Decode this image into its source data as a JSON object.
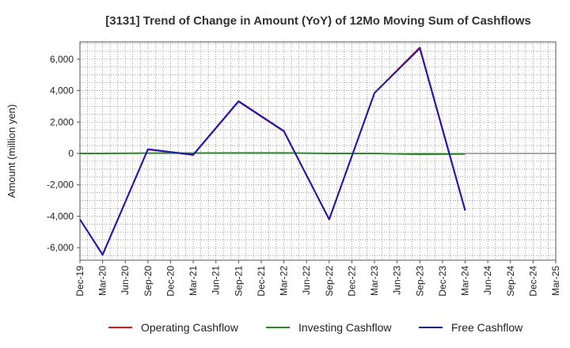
{
  "chart_data": {
    "type": "line",
    "title": "[3131]  Trend of Change in Amount (YoY) of 12Mo Moving Sum of Cashflows",
    "xlabel": "",
    "ylabel": "Amount (million yen)",
    "ylim": [
      -6800,
      7100
    ],
    "yticks": [
      -6000,
      -4000,
      -2000,
      0,
      2000,
      4000,
      6000
    ],
    "ytick_labels": [
      "-6,000",
      "-4,000",
      "-2,000",
      "0",
      "2,000",
      "4,000",
      "6,000"
    ],
    "x": [
      "Dec-19",
      "Mar-20",
      "Jun-20",
      "Sep-20",
      "Dec-20",
      "Mar-21",
      "Jun-21",
      "Sep-21",
      "Dec-21",
      "Mar-22",
      "Jun-22",
      "Sep-22",
      "Dec-22",
      "Mar-23",
      "Jun-23",
      "Sep-23",
      "Dec-23",
      "Mar-24",
      "Jun-24",
      "Sep-24",
      "Dec-24",
      "Mar-25"
    ],
    "grid": true,
    "legend_position": "bottom",
    "series": [
      {
        "name": "Operating Cashflow",
        "color": "#e8141b",
        "values": [
          -4200,
          -6450,
          null,
          250,
          null,
          -100,
          null,
          3300,
          null,
          1400,
          null,
          -4200,
          null,
          3850,
          null,
          6750,
          null,
          -3600,
          null,
          null,
          null,
          null
        ]
      },
      {
        "name": "Investing Cashflow",
        "color": "#2a8a2a",
        "values": [
          0,
          0,
          null,
          20,
          null,
          20,
          null,
          30,
          null,
          30,
          null,
          0,
          null,
          0,
          null,
          -60,
          null,
          -40,
          null,
          null,
          null,
          null
        ]
      },
      {
        "name": "Free Cashflow",
        "color": "#1a1ab5",
        "values": [
          -4200,
          -6450,
          null,
          270,
          null,
          -80,
          null,
          3330,
          null,
          1430,
          null,
          -4200,
          null,
          3850,
          null,
          6690,
          null,
          -3640,
          null,
          null,
          null,
          null
        ]
      }
    ]
  }
}
